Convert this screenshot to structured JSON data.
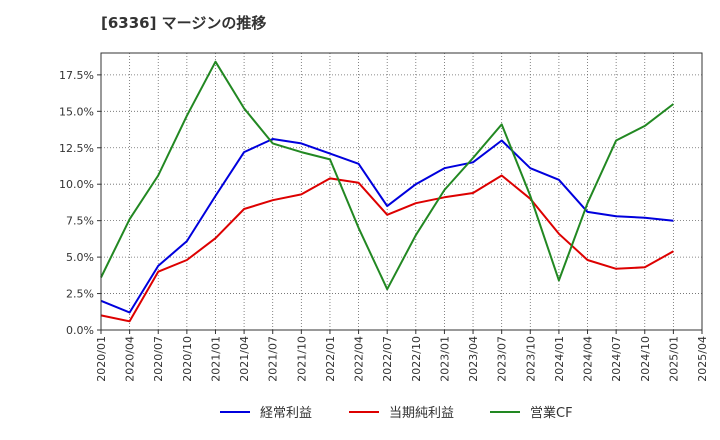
{
  "title": "[6336]  マージンの推移",
  "chart_data": {
    "type": "line",
    "title": "[6336]  マージンの推移",
    "x": [
      "2020/01",
      "2020/04",
      "2020/07",
      "2020/10",
      "2021/01",
      "2021/04",
      "2021/07",
      "2021/10",
      "2022/01",
      "2022/04",
      "2022/07",
      "2022/10",
      "2023/01",
      "2023/04",
      "2023/07",
      "2023/10",
      "2024/01",
      "2024/04",
      "2024/07",
      "2024/10",
      "2025/01",
      "2025/04"
    ],
    "ylim": [
      0,
      0.19
    ],
    "yticks": [
      0,
      0.025,
      0.05,
      0.075,
      0.1,
      0.125,
      0.15,
      0.175
    ],
    "ytick_labels": [
      "0.0%",
      "2.5%",
      "5.0%",
      "7.5%",
      "10.0%",
      "12.5%",
      "15.0%",
      "17.5%"
    ],
    "grid": true,
    "legend_position": "bottom",
    "series": [
      {
        "name": "経常利益",
        "color": "#0000dd",
        "values": [
          0.02,
          0.012,
          0.044,
          0.061,
          0.092,
          0.122,
          0.131,
          0.128,
          0.121,
          0.114,
          0.085,
          0.1,
          0.111,
          0.115,
          0.13,
          0.111,
          0.103,
          0.081,
          0.078,
          0.077,
          0.075,
          null
        ]
      },
      {
        "name": "当期純利益",
        "color": "#dd0000",
        "values": [
          0.01,
          0.006,
          0.04,
          0.048,
          0.063,
          0.083,
          0.089,
          0.093,
          0.104,
          0.101,
          0.079,
          0.087,
          0.091,
          0.094,
          0.106,
          0.09,
          0.066,
          0.048,
          0.042,
          0.043,
          0.054,
          null
        ]
      },
      {
        "name": "営業CF",
        "color": "#228822",
        "values": [
          0.036,
          0.076,
          0.106,
          0.147,
          0.184,
          0.152,
          0.128,
          0.122,
          0.117,
          0.07,
          0.028,
          0.065,
          0.096,
          0.118,
          0.141,
          0.092,
          0.034,
          0.087,
          0.13,
          0.14,
          0.155,
          null
        ]
      }
    ]
  }
}
